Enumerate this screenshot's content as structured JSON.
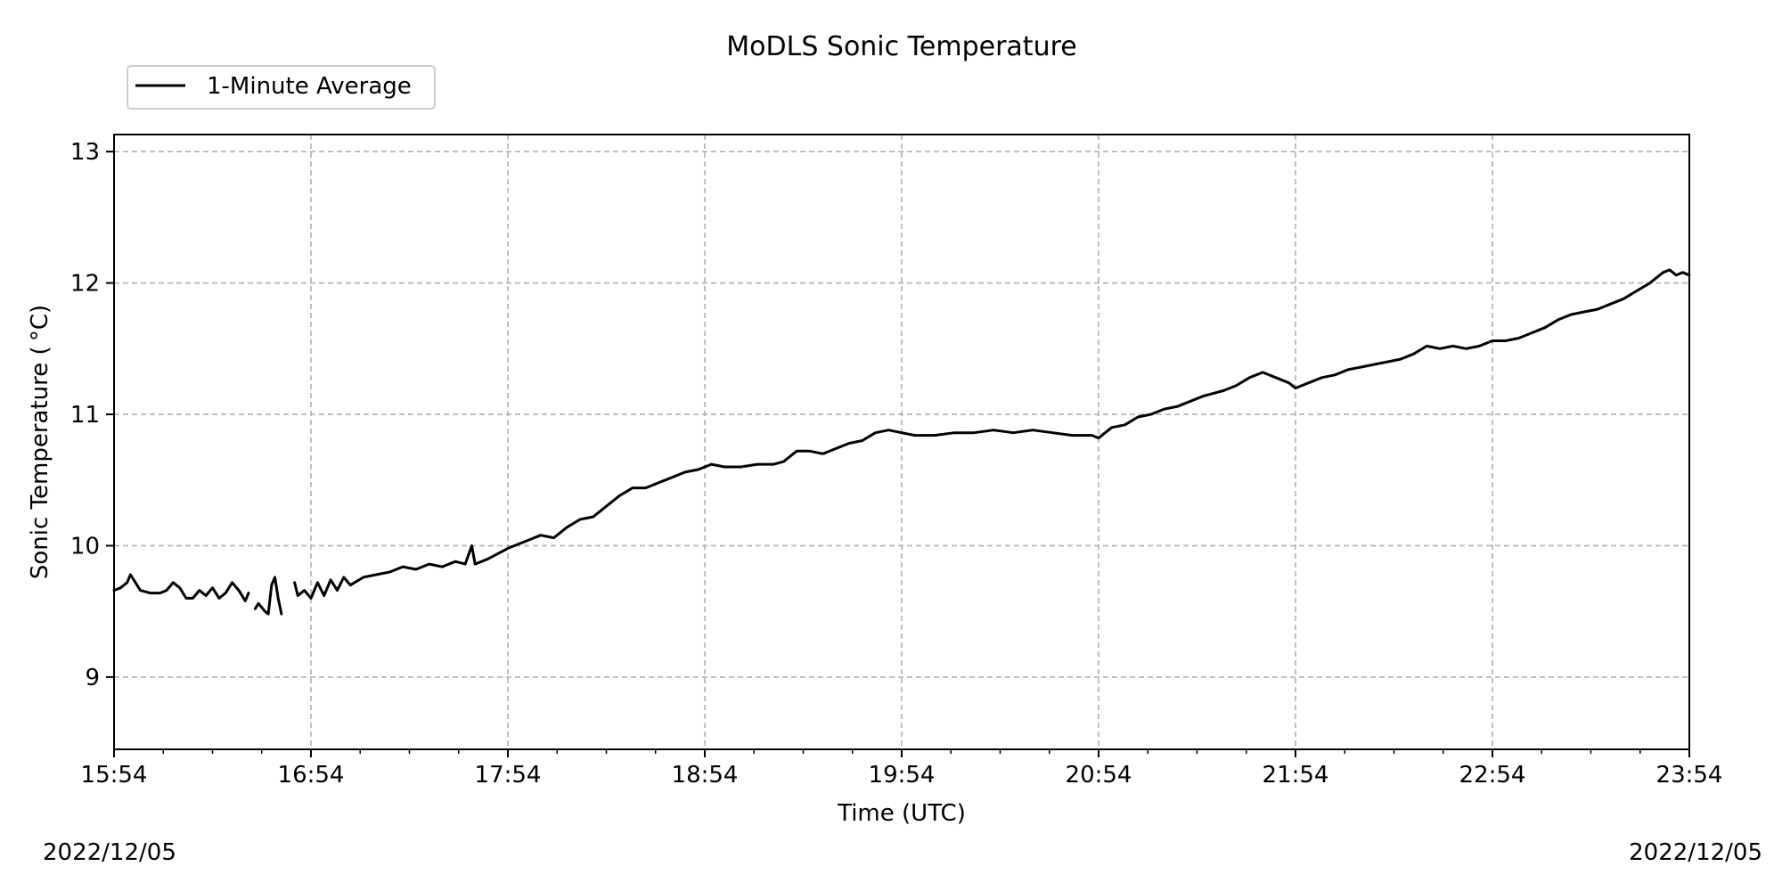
{
  "chart_data": {
    "type": "line",
    "title": "MoDLS Sonic Temperature",
    "xlabel": "Time (UTC)",
    "ylabel": "Sonic Temperature ($^\\circ$C)",
    "ylabel_display": "Sonic Temperature ( °C)",
    "x_ticks": [
      "15:54",
      "16:54",
      "17:54",
      "18:54",
      "19:54",
      "20:54",
      "21:54",
      "22:54",
      "23:54"
    ],
    "xlim": [
      "15:54",
      "23:54"
    ],
    "y_ticks": [
      9,
      10,
      11,
      12,
      13
    ],
    "ylim": [
      8.45,
      13.13
    ],
    "grid": true,
    "legend_position": "top-left-outside",
    "date_start": "2022/12/05",
    "date_end": "2022/12/05",
    "series": [
      {
        "name": "1-Minute Average",
        "color": "#000000",
        "segments": [
          [
            [
              "15:54",
              9.66
            ],
            [
              "15:56",
              9.68
            ],
            [
              "15:58",
              9.72
            ],
            [
              "15:59",
              9.78
            ],
            [
              "16:00",
              9.74
            ],
            [
              "16:02",
              9.66
            ],
            [
              "16:05",
              9.64
            ],
            [
              "16:08",
              9.64
            ],
            [
              "16:10",
              9.66
            ],
            [
              "16:12",
              9.72
            ],
            [
              "16:14",
              9.68
            ],
            [
              "16:16",
              9.6
            ],
            [
              "16:18",
              9.6
            ],
            [
              "16:20",
              9.66
            ],
            [
              "16:22",
              9.62
            ],
            [
              "16:24",
              9.68
            ],
            [
              "16:26",
              9.6
            ],
            [
              "16:28",
              9.64
            ],
            [
              "16:30",
              9.72
            ],
            [
              "16:32",
              9.66
            ],
            [
              "16:34",
              9.58
            ],
            [
              "16:35",
              9.64
            ]
          ],
          [
            [
              "16:37",
              9.52
            ],
            [
              "16:38",
              9.56
            ],
            [
              "16:40",
              9.5
            ],
            [
              "16:41",
              9.48
            ],
            [
              "16:42",
              9.7
            ],
            [
              "16:43",
              9.76
            ],
            [
              "16:44",
              9.6
            ],
            [
              "16:45",
              9.48
            ]
          ],
          [
            [
              "16:49",
              9.72
            ],
            [
              "16:50",
              9.62
            ],
            [
              "16:52",
              9.66
            ],
            [
              "16:54",
              9.6
            ],
            [
              "16:56",
              9.72
            ],
            [
              "16:58",
              9.62
            ],
            [
              "17:00",
              9.74
            ],
            [
              "17:02",
              9.66
            ],
            [
              "17:04",
              9.76
            ],
            [
              "17:06",
              9.7
            ],
            [
              "17:10",
              9.76
            ],
            [
              "17:14",
              9.78
            ],
            [
              "17:18",
              9.8
            ],
            [
              "17:22",
              9.84
            ],
            [
              "17:26",
              9.82
            ],
            [
              "17:30",
              9.86
            ],
            [
              "17:34",
              9.84
            ],
            [
              "17:38",
              9.88
            ],
            [
              "17:41",
              9.86
            ],
            [
              "17:43",
              10.0
            ],
            [
              "17:44",
              9.86
            ],
            [
              "17:48",
              9.9
            ],
            [
              "17:51",
              9.94
            ],
            [
              "17:54",
              9.98
            ],
            [
              "18:00",
              10.04
            ],
            [
              "18:04",
              10.08
            ],
            [
              "18:08",
              10.06
            ],
            [
              "18:12",
              10.14
            ],
            [
              "18:16",
              10.2
            ],
            [
              "18:20",
              10.22
            ],
            [
              "18:24",
              10.3
            ],
            [
              "18:28",
              10.38
            ],
            [
              "18:32",
              10.44
            ],
            [
              "18:36",
              10.44
            ],
            [
              "18:40",
              10.48
            ],
            [
              "18:44",
              10.52
            ],
            [
              "18:48",
              10.56
            ],
            [
              "18:52",
              10.58
            ],
            [
              "18:56",
              10.62
            ],
            [
              "19:00",
              10.6
            ],
            [
              "19:05",
              10.6
            ],
            [
              "19:10",
              10.62
            ],
            [
              "19:15",
              10.62
            ],
            [
              "19:18",
              10.64
            ],
            [
              "19:22",
              10.72
            ],
            [
              "19:26",
              10.72
            ],
            [
              "19:30",
              10.7
            ],
            [
              "19:34",
              10.74
            ],
            [
              "19:38",
              10.78
            ],
            [
              "19:42",
              10.8
            ],
            [
              "19:46",
              10.86
            ],
            [
              "19:50",
              10.88
            ],
            [
              "19:54",
              10.86
            ],
            [
              "19:58",
              10.84
            ],
            [
              "20:04",
              10.84
            ],
            [
              "20:10",
              10.86
            ],
            [
              "20:16",
              10.86
            ],
            [
              "20:22",
              10.88
            ],
            [
              "20:28",
              10.86
            ],
            [
              "20:34",
              10.88
            ],
            [
              "20:40",
              10.86
            ],
            [
              "20:46",
              10.84
            ],
            [
              "20:52",
              10.84
            ],
            [
              "20:54",
              10.82
            ],
            [
              "20:58",
              10.9
            ],
            [
              "21:02",
              10.92
            ],
            [
              "21:06",
              10.98
            ],
            [
              "21:10",
              11.0
            ],
            [
              "21:14",
              11.04
            ],
            [
              "21:18",
              11.06
            ],
            [
              "21:22",
              11.1
            ],
            [
              "21:26",
              11.14
            ],
            [
              "21:32",
              11.18
            ],
            [
              "21:36",
              11.22
            ],
            [
              "21:40",
              11.28
            ],
            [
              "21:44",
              11.32
            ],
            [
              "21:48",
              11.28
            ],
            [
              "21:52",
              11.24
            ],
            [
              "21:54",
              11.2
            ],
            [
              "21:58",
              11.24
            ],
            [
              "22:02",
              11.28
            ],
            [
              "22:06",
              11.3
            ],
            [
              "22:10",
              11.34
            ],
            [
              "22:14",
              11.36
            ],
            [
              "22:18",
              11.38
            ],
            [
              "22:22",
              11.4
            ],
            [
              "22:26",
              11.42
            ],
            [
              "22:30",
              11.46
            ],
            [
              "22:34",
              11.52
            ],
            [
              "22:38",
              11.5
            ],
            [
              "22:42",
              11.52
            ],
            [
              "22:46",
              11.5
            ],
            [
              "22:50",
              11.52
            ],
            [
              "22:54",
              11.56
            ],
            [
              "22:58",
              11.56
            ],
            [
              "23:02",
              11.58
            ],
            [
              "23:06",
              11.62
            ],
            [
              "23:10",
              11.66
            ],
            [
              "23:14",
              11.72
            ],
            [
              "23:18",
              11.76
            ],
            [
              "23:22",
              11.78
            ],
            [
              "23:26",
              11.8
            ],
            [
              "23:30",
              11.84
            ],
            [
              "23:34",
              11.88
            ],
            [
              "23:38",
              11.94
            ],
            [
              "23:42",
              12.0
            ],
            [
              "23:46",
              12.08
            ],
            [
              "23:48",
              12.1
            ],
            [
              "23:50",
              12.06
            ],
            [
              "23:52",
              12.08
            ],
            [
              "23:54",
              12.06
            ]
          ]
        ]
      }
    ]
  }
}
